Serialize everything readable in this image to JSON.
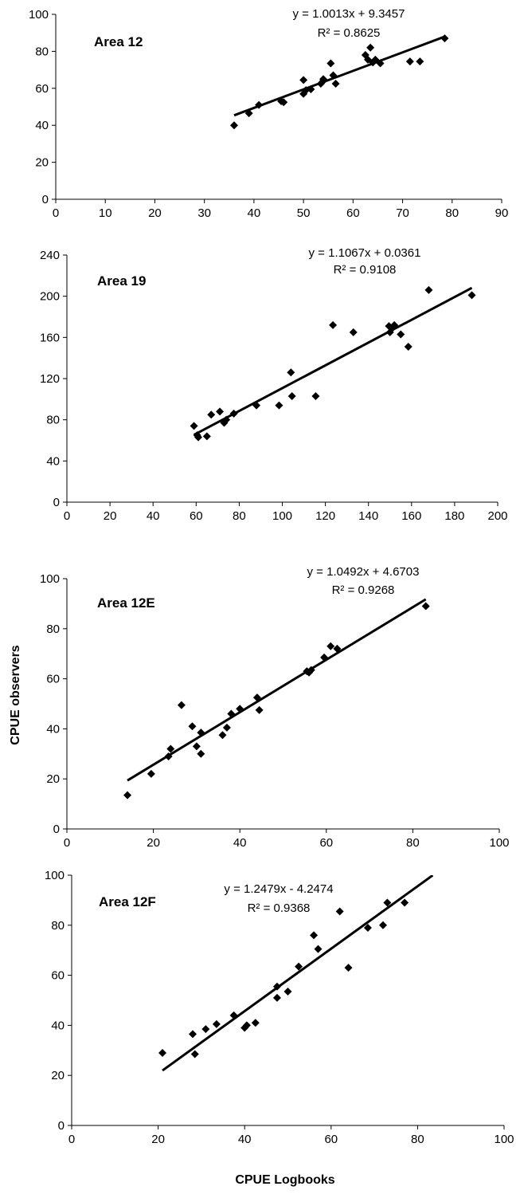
{
  "figure": {
    "ylabel": "CPUE observers",
    "xlabel": "CPUE Logbooks"
  },
  "chart_data": [
    {
      "type": "scatter",
      "label": "Area 12",
      "equation": "y = 1.0013x + 9.3457",
      "r2": "R² = 0.8625",
      "trend": {
        "slope": 1.0013,
        "intercept": 9.3457,
        "x_range": [
          36,
          78.5
        ]
      },
      "xlim": [
        0,
        90
      ],
      "ylim": [
        0,
        100
      ],
      "xticks": [
        0,
        10,
        20,
        30,
        40,
        50,
        60,
        70,
        80,
        90
      ],
      "yticks": [
        0,
        20,
        40,
        60,
        80,
        100
      ],
      "points": [
        {
          "x": 36,
          "y": 40
        },
        {
          "x": 39,
          "y": 46.5
        },
        {
          "x": 41,
          "y": 51
        },
        {
          "x": 45.5,
          "y": 53
        },
        {
          "x": 46,
          "y": 52.5
        },
        {
          "x": 50,
          "y": 64.5
        },
        {
          "x": 50,
          "y": 57
        },
        {
          "x": 50.5,
          "y": 59
        },
        {
          "x": 51.5,
          "y": 59.5
        },
        {
          "x": 53.5,
          "y": 62.5
        },
        {
          "x": 54,
          "y": 64
        },
        {
          "x": 54,
          "y": 65
        },
        {
          "x": 55.5,
          "y": 73.5
        },
        {
          "x": 56,
          "y": 67
        },
        {
          "x": 56.5,
          "y": 62.5
        },
        {
          "x": 62.5,
          "y": 78
        },
        {
          "x": 63,
          "y": 75.5
        },
        {
          "x": 63.5,
          "y": 82
        },
        {
          "x": 64,
          "y": 74
        },
        {
          "x": 64.5,
          "y": 75.5
        },
        {
          "x": 65.5,
          "y": 73.5
        },
        {
          "x": 71.5,
          "y": 74.5
        },
        {
          "x": 73.5,
          "y": 74.5
        },
        {
          "x": 78.5,
          "y": 87
        }
      ]
    },
    {
      "type": "scatter",
      "label": "Area 19",
      "equation": "y = 1.1067x + 0.0361",
      "r2": "R² = 0.9108",
      "trend": {
        "slope": 1.1067,
        "intercept": 0.0361,
        "x_range": [
          59,
          188
        ]
      },
      "xlim": [
        0,
        200
      ],
      "ylim": [
        0,
        240
      ],
      "xticks": [
        0,
        20,
        40,
        60,
        80,
        100,
        120,
        140,
        160,
        180,
        200
      ],
      "yticks": [
        0,
        40,
        80,
        120,
        160,
        200,
        240
      ],
      "points": [
        {
          "x": 59,
          "y": 74
        },
        {
          "x": 60.5,
          "y": 65
        },
        {
          "x": 61,
          "y": 63
        },
        {
          "x": 65,
          "y": 64
        },
        {
          "x": 67,
          "y": 85
        },
        {
          "x": 71,
          "y": 88
        },
        {
          "x": 73,
          "y": 77
        },
        {
          "x": 74,
          "y": 80
        },
        {
          "x": 77.5,
          "y": 86
        },
        {
          "x": 88,
          "y": 94
        },
        {
          "x": 98.5,
          "y": 94
        },
        {
          "x": 104,
          "y": 126
        },
        {
          "x": 104.5,
          "y": 103
        },
        {
          "x": 115.5,
          "y": 103
        },
        {
          "x": 123.5,
          "y": 172
        },
        {
          "x": 133,
          "y": 165
        },
        {
          "x": 149.5,
          "y": 171
        },
        {
          "x": 150,
          "y": 165
        },
        {
          "x": 151,
          "y": 169
        },
        {
          "x": 152,
          "y": 172
        },
        {
          "x": 155,
          "y": 163
        },
        {
          "x": 158.5,
          "y": 151
        },
        {
          "x": 168,
          "y": 206
        },
        {
          "x": 188,
          "y": 201
        }
      ]
    },
    {
      "type": "scatter",
      "label": "Area 12E",
      "equation": "y = 1.0492x + 4.6703",
      "r2": "R² = 0.9268",
      "trend": {
        "slope": 1.0492,
        "intercept": 4.6703,
        "x_range": [
          14,
          83
        ]
      },
      "xlim": [
        0,
        100
      ],
      "ylim": [
        0,
        100
      ],
      "xticks": [
        0,
        20,
        40,
        60,
        80,
        100
      ],
      "yticks": [
        0,
        20,
        40,
        60,
        80,
        100
      ],
      "points": [
        {
          "x": 14,
          "y": 13.5
        },
        {
          "x": 19.5,
          "y": 22
        },
        {
          "x": 23.5,
          "y": 29
        },
        {
          "x": 24,
          "y": 32
        },
        {
          "x": 26.5,
          "y": 49.5
        },
        {
          "x": 29,
          "y": 41
        },
        {
          "x": 30,
          "y": 33
        },
        {
          "x": 31,
          "y": 38.5
        },
        {
          "x": 31,
          "y": 30
        },
        {
          "x": 36,
          "y": 37.5
        },
        {
          "x": 37,
          "y": 40.5
        },
        {
          "x": 38,
          "y": 46
        },
        {
          "x": 40,
          "y": 48
        },
        {
          "x": 44,
          "y": 52.5
        },
        {
          "x": 44.5,
          "y": 47.5
        },
        {
          "x": 55.5,
          "y": 63
        },
        {
          "x": 56,
          "y": 62.5
        },
        {
          "x": 56.5,
          "y": 63.5
        },
        {
          "x": 59.5,
          "y": 68.5
        },
        {
          "x": 61,
          "y": 73
        },
        {
          "x": 62.5,
          "y": 72
        },
        {
          "x": 83,
          "y": 89
        }
      ]
    },
    {
      "type": "scatter",
      "label": "Area 12F",
      "equation": "y = 1.2479x - 4.2474",
      "r2": "R² = 0.9368",
      "trend": {
        "slope": 1.2479,
        "intercept": -4.2474,
        "x_range": [
          21,
          83.5
        ]
      },
      "xlim": [
        0,
        100
      ],
      "ylim": [
        0,
        100
      ],
      "xticks": [
        0,
        20,
        40,
        60,
        80,
        100
      ],
      "yticks": [
        0,
        20,
        40,
        60,
        80,
        100
      ],
      "points": [
        {
          "x": 21,
          "y": 29
        },
        {
          "x": 28,
          "y": 36.5
        },
        {
          "x": 28.5,
          "y": 28.5
        },
        {
          "x": 31,
          "y": 38.5
        },
        {
          "x": 33.5,
          "y": 40.5
        },
        {
          "x": 37.5,
          "y": 44
        },
        {
          "x": 40,
          "y": 39
        },
        {
          "x": 40.5,
          "y": 40
        },
        {
          "x": 42.5,
          "y": 41
        },
        {
          "x": 47.5,
          "y": 51
        },
        {
          "x": 47.5,
          "y": 55.5
        },
        {
          "x": 50,
          "y": 53.5
        },
        {
          "x": 52.5,
          "y": 63.5
        },
        {
          "x": 56,
          "y": 76
        },
        {
          "x": 57,
          "y": 70.5
        },
        {
          "x": 62,
          "y": 85.5
        },
        {
          "x": 64,
          "y": 63
        },
        {
          "x": 68.5,
          "y": 79
        },
        {
          "x": 72,
          "y": 80
        },
        {
          "x": 73,
          "y": 89
        },
        {
          "x": 77,
          "y": 89
        }
      ]
    }
  ]
}
